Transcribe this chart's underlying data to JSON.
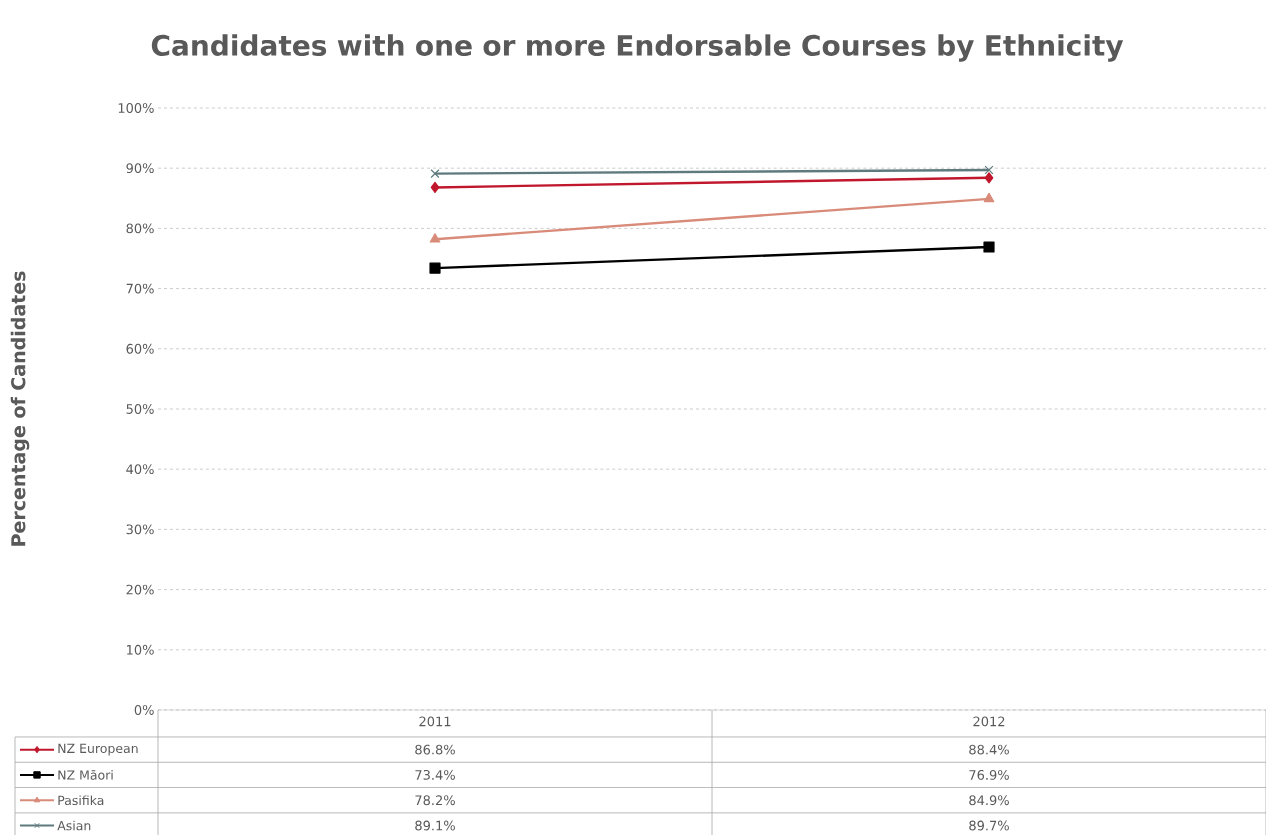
{
  "chart_data": {
    "type": "line",
    "title": "Candidates with one or more Endorsable Courses by Ethnicity",
    "ylabel": "Percentage of Candidates",
    "categories": [
      "2011",
      "2012"
    ],
    "series": [
      {
        "name": "NZ European",
        "color": "#c0172d",
        "marker": "diamond",
        "values": [
          86.8,
          88.4
        ],
        "value_labels": [
          "86.8%",
          "88.4%"
        ]
      },
      {
        "name": "NZ Māori",
        "color": "#000000",
        "marker": "square",
        "values": [
          73.4,
          76.9
        ],
        "value_labels": [
          "73.4%",
          "76.9%"
        ]
      },
      {
        "name": "Pasifika",
        "color": "#d98b7a",
        "marker": "triangle",
        "values": [
          78.2,
          84.9
        ],
        "value_labels": [
          "78.2%",
          "84.9%"
        ]
      },
      {
        "name": "Asian",
        "color": "#5f7a7d",
        "marker": "cross",
        "values": [
          89.1,
          89.7
        ],
        "value_labels": [
          "89.1%",
          "89.7%"
        ]
      }
    ],
    "ylim": [
      0,
      100
    ],
    "yticks": [
      {
        "value": 0,
        "label": "0%"
      },
      {
        "value": 10,
        "label": "10%"
      },
      {
        "value": 20,
        "label": "20%"
      },
      {
        "value": 30,
        "label": "30%"
      },
      {
        "value": 40,
        "label": "40%"
      },
      {
        "value": 50,
        "label": "50%"
      },
      {
        "value": 60,
        "label": "60%"
      },
      {
        "value": 70,
        "label": "70%"
      },
      {
        "value": 80,
        "label": "80%"
      },
      {
        "value": 90,
        "label": "90%"
      },
      {
        "value": 100,
        "label": "100%"
      }
    ],
    "grid": "y",
    "legend": "bottom"
  }
}
